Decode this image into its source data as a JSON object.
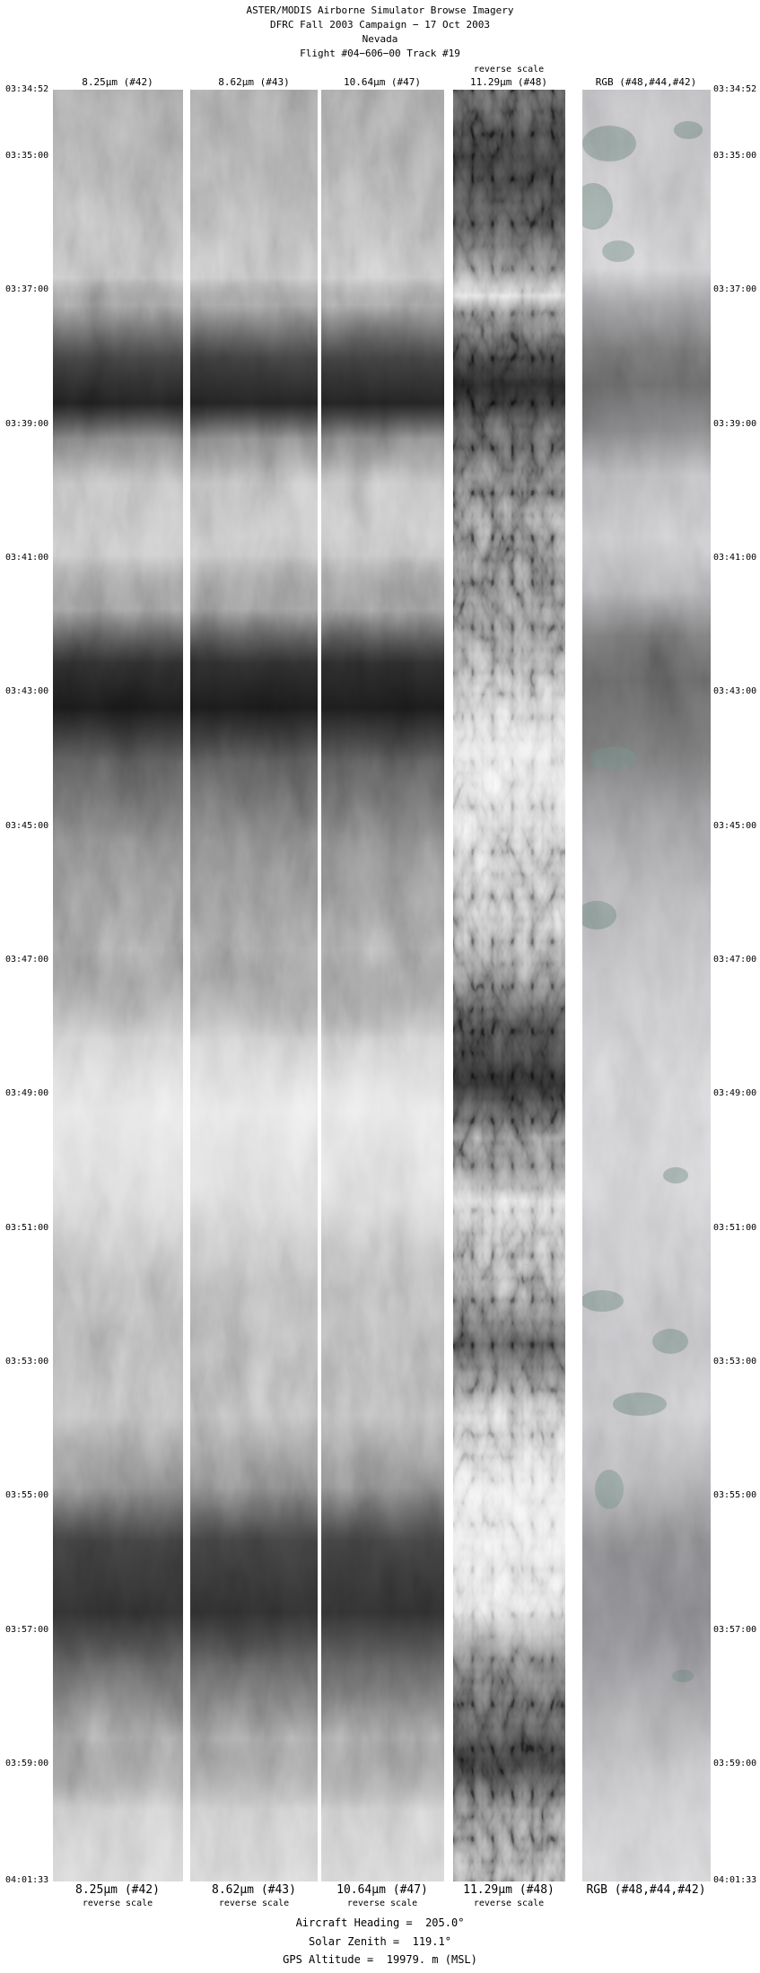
{
  "chart_data": {
    "type": "heatmap",
    "title": "ASTER/MODIS Airborne Simulator Browse Imagery",
    "subtitle": "DFRC Fall 2003 Campaign − 17 Oct 2003",
    "region": "Nevada",
    "flight": "Flight #04−606−00 Track #19",
    "panels": [
      {
        "label": "8.25μm (#42)",
        "reverse_scale": true
      },
      {
        "label": "8.62μm (#43)",
        "reverse_scale": true
      },
      {
        "label": "10.64μm (#47)",
        "reverse_scale": true
      },
      {
        "label": "11.29μm (#48)",
        "reverse_scale": true
      },
      {
        "label": "RGB (#48,#44,#42)",
        "reverse_scale": false
      }
    ],
    "y_ticks": [
      "03:34:52",
      "03:35:00",
      "03:37:00",
      "03:39:00",
      "03:41:00",
      "03:43:00",
      "03:45:00",
      "03:47:00",
      "03:49:00",
      "03:51:00",
      "03:53:00",
      "03:55:00",
      "03:57:00",
      "03:59:00",
      "04:01:33"
    ],
    "ylabel": "",
    "annotations": [
      "Aircraft Heading =  205.0°",
      "Solar Zenith =  119.1°",
      "GPS Altitude =  19979. m (MSL)"
    ]
  },
  "header": {
    "line1": "ASTER/MODIS Airborne Simulator Browse Imagery",
    "line2": "DFRC Fall 2003 Campaign − 17 Oct 2003",
    "line3": "Nevada",
    "line4": "Flight #04−606−00 Track #19"
  },
  "columns": [
    {
      "label": "8.25μm (#42)",
      "reverse_scale_top": false,
      "reverse_scale_bottom": true
    },
    {
      "label": "8.62μm (#43)",
      "reverse_scale_top": false,
      "reverse_scale_bottom": true
    },
    {
      "label": "10.64μm (#47)",
      "reverse_scale_top": false,
      "reverse_scale_bottom": true
    },
    {
      "label": "11.29μm (#48)",
      "reverse_scale_top": true,
      "reverse_scale_bottom": true
    },
    {
      "label": "RGB (#48,#44,#42)",
      "reverse_scale_top": false,
      "reverse_scale_bottom": false
    }
  ],
  "reverse_scale_label": "reverse scale",
  "timeline": {
    "times": [
      "03:34:52",
      "03:35:00",
      "03:37:00",
      "03:39:00",
      "03:41:00",
      "03:43:00",
      "03:45:00",
      "03:47:00",
      "03:49:00",
      "03:51:00",
      "03:53:00",
      "03:55:00",
      "03:57:00",
      "03:59:00",
      "04:01:33"
    ]
  },
  "footer": {
    "aircraft_heading": "Aircraft Heading =  205.0°",
    "solar_zenith": "Solar Zenith =  119.1°",
    "gps_altitude": "GPS Altitude =  19979. m (MSL)"
  },
  "colors": {
    "background": "#ffffff",
    "text": "#000000",
    "rgb_vegetation_tint": "#2e5f50"
  }
}
